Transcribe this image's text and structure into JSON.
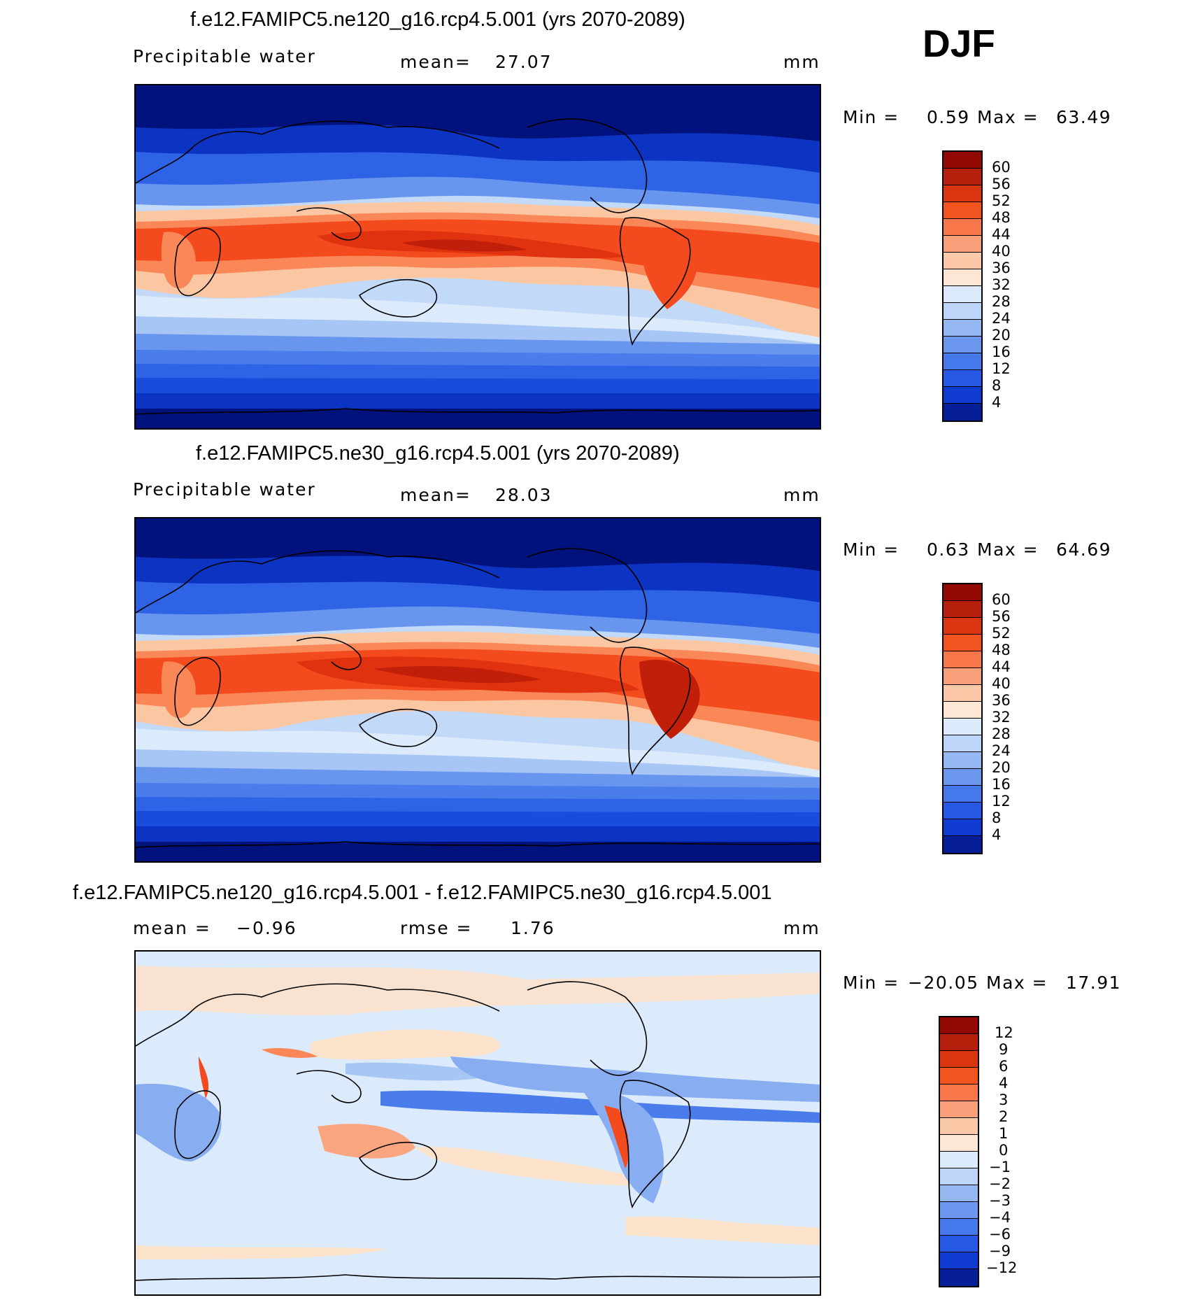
{
  "season": "DJF",
  "colors": {
    "positive": [
      "#fce1cb",
      "#fbc7a3",
      "#f9a680",
      "#f98758",
      "#f96a3a",
      "#f34b1e",
      "#e0320e",
      "#c21f0b",
      "#910902"
    ],
    "negative": [
      "#dcebfb",
      "#c2d9f8",
      "#a8c6f5",
      "#88adf1",
      "#6896ee",
      "#4b7cec",
      "#2f63e6",
      "#1a4cdc",
      "#0d33c2",
      "#061f99",
      "#02127c"
    ],
    "coastline": "#000000"
  },
  "panels": [
    {
      "title": "f.e12.FAMIPC5.ne120_g16.rcp4.5.001 (yrs 2070-2089)",
      "left_label": "Precipitable water",
      "stat_label": "mean=",
      "stat_value": "27.07",
      "units": "mm",
      "min_label": "Min =",
      "min_value": "0.59",
      "max_label": "Max =",
      "max_value": "63.49",
      "legend_levels": [
        "60",
        "56",
        "52",
        "48",
        "44",
        "40",
        "36",
        "32",
        "28",
        "24",
        "20",
        "16",
        "12",
        "8",
        "4"
      ]
    },
    {
      "title": "f.e12.FAMIPC5.ne30_g16.rcp4.5.001 (yrs 2070-2089)",
      "left_label": "Precipitable water",
      "stat_label": "mean=",
      "stat_value": "28.03",
      "units": "mm",
      "min_label": "Min =",
      "min_value": "0.63",
      "max_label": "Max =",
      "max_value": "64.69",
      "legend_levels": [
        "60",
        "56",
        "52",
        "48",
        "44",
        "40",
        "36",
        "32",
        "28",
        "24",
        "20",
        "16",
        "12",
        "8",
        "4"
      ]
    },
    {
      "title": "f.e12.FAMIPC5.ne120_g16.rcp4.5.001 - f.e12.FAMIPC5.ne30_g16.rcp4.5.001",
      "left_label": "mean =",
      "left_value": "−0.96",
      "stat_label": "rmse =",
      "stat_value": "1.76",
      "units": "mm",
      "min_label": "Min =",
      "min_value": "−20.05",
      "max_label": "Max =",
      "max_value": "17.91",
      "legend_levels": [
        "12",
        "9",
        "6",
        "4",
        "3",
        "2",
        "1",
        "0",
        "−1",
        "−2",
        "−3",
        "−4",
        "−6",
        "−9",
        "−12"
      ]
    }
  ]
}
